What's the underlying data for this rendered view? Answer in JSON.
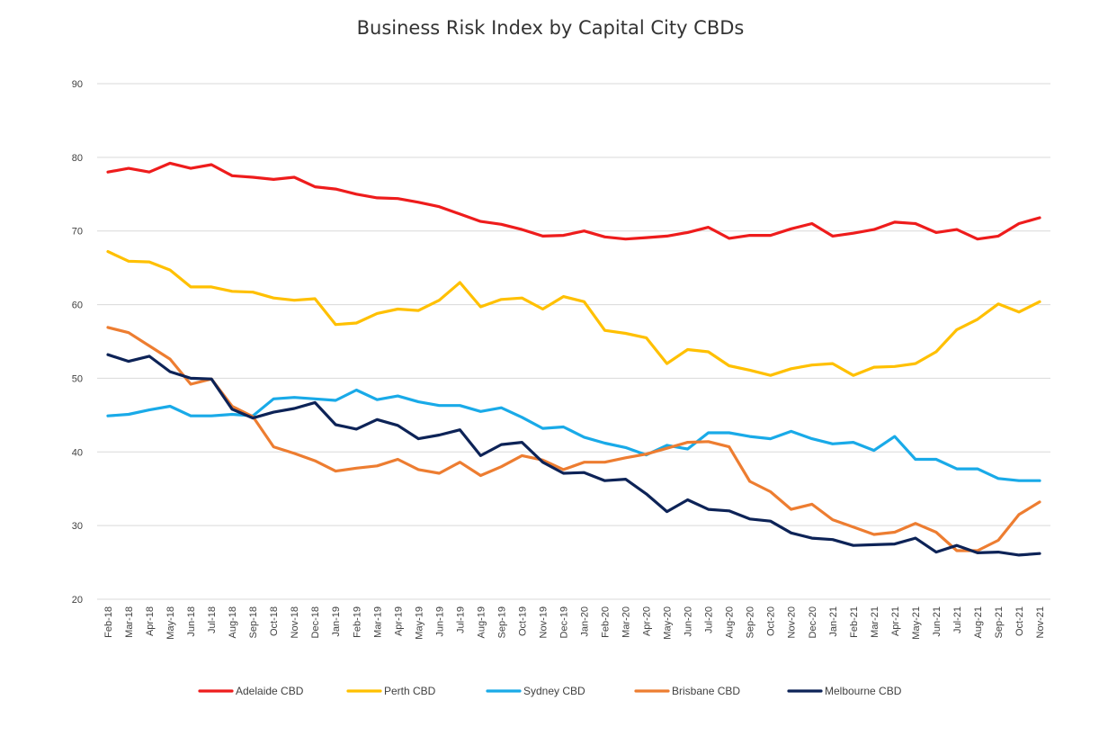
{
  "chart_data": {
    "type": "line",
    "title": "Business Risk Index by Capital City CBDs",
    "xlabel": "",
    "ylabel": "",
    "ylim": [
      20,
      90
    ],
    "yticks": [
      20,
      30,
      40,
      50,
      60,
      70,
      80,
      90
    ],
    "grid": true,
    "legend_position": "bottom",
    "categories": [
      "Feb-18",
      "Mar-18",
      "Apr-18",
      "May-18",
      "Jun-18",
      "Jul-18",
      "Aug-18",
      "Sep-18",
      "Oct-18",
      "Nov-18",
      "Dec-18",
      "Jan-19",
      "Feb-19",
      "Mar-19",
      "Apr-19",
      "May-19",
      "Jun-19",
      "Jul-19",
      "Aug-19",
      "Sep-19",
      "Oct-19",
      "Nov-19",
      "Dec-19",
      "Jan-20",
      "Feb-20",
      "Mar-20",
      "Apr-20",
      "May-20",
      "Jun-20",
      "Jul-20",
      "Aug-20",
      "Sep-20",
      "Oct-20",
      "Nov-20",
      "Dec-20",
      "Jan-21",
      "Feb-21",
      "Mar-21",
      "Apr-21",
      "May-21",
      "Jun-21",
      "Jul-21",
      "Aug-21",
      "Sep-21",
      "Oct-21",
      "Nov-21"
    ],
    "series": [
      {
        "name": "Adelaide CBD",
        "color": "#ee1c1c",
        "values": [
          78.0,
          78.5,
          78.0,
          79.2,
          78.5,
          79.0,
          77.5,
          77.3,
          77.0,
          77.3,
          76.0,
          75.7,
          75.0,
          74.5,
          74.4,
          73.9,
          73.3,
          72.3,
          71.3,
          70.9,
          70.2,
          69.3,
          69.4,
          70.0,
          69.2,
          68.9,
          69.1,
          69.3,
          69.8,
          70.5,
          69.0,
          69.4,
          69.4,
          70.3,
          71.0,
          69.3,
          69.7,
          70.2,
          71.2,
          71.0,
          69.8,
          70.2,
          68.9,
          69.3,
          71.0,
          71.8
        ]
      },
      {
        "name": "Perth CBD",
        "color": "#ffc000",
        "values": [
          67.2,
          65.9,
          65.8,
          64.7,
          62.4,
          62.4,
          61.8,
          61.7,
          60.9,
          60.6,
          60.8,
          57.3,
          57.5,
          58.8,
          59.4,
          59.2,
          60.6,
          63.0,
          59.7,
          60.7,
          60.9,
          59.4,
          61.1,
          60.4,
          56.5,
          56.1,
          55.5,
          52.0,
          53.9,
          53.6,
          51.7,
          51.1,
          50.4,
          51.3,
          51.8,
          52.0,
          50.4,
          51.5,
          51.6,
          52.0,
          53.6,
          56.6,
          58.0,
          60.1,
          59.0,
          60.4
        ]
      },
      {
        "name": "Sydney CBD",
        "color": "#19aae8",
        "values": [
          44.9,
          45.1,
          45.7,
          46.2,
          44.9,
          44.9,
          45.1,
          44.9,
          47.2,
          47.4,
          47.2,
          47.0,
          48.4,
          47.1,
          47.6,
          46.8,
          46.3,
          46.3,
          45.5,
          46.0,
          44.7,
          43.2,
          43.4,
          42.0,
          41.2,
          40.6,
          39.6,
          40.9,
          40.4,
          42.6,
          42.6,
          42.1,
          41.8,
          42.8,
          41.8,
          41.1,
          41.3,
          40.2,
          42.1,
          39.0,
          39.0,
          37.7,
          37.7,
          36.4,
          36.1,
          36.1
        ]
      },
      {
        "name": "Brisbane CBD",
        "color": "#ed7d31",
        "values": [
          56.9,
          56.2,
          54.4,
          52.6,
          49.2,
          49.9,
          46.2,
          44.8,
          40.7,
          39.8,
          38.8,
          37.4,
          37.8,
          38.1,
          39.0,
          37.6,
          37.1,
          38.6,
          36.8,
          38.0,
          39.5,
          38.9,
          37.6,
          38.6,
          38.6,
          39.2,
          39.7,
          40.5,
          41.3,
          41.4,
          40.7,
          36.0,
          34.6,
          32.2,
          32.9,
          30.8,
          29.8,
          28.8,
          29.1,
          30.3,
          29.1,
          26.6,
          26.6,
          28.0,
          31.5,
          33.2
        ]
      },
      {
        "name": "Melbourne CBD",
        "color": "#0d2357",
        "values": [
          53.2,
          52.3,
          53.0,
          50.9,
          50.0,
          49.9,
          45.8,
          44.6,
          45.4,
          45.9,
          46.7,
          43.7,
          43.1,
          44.4,
          43.6,
          41.8,
          42.3,
          43.0,
          39.5,
          41.0,
          41.3,
          38.6,
          37.1,
          37.2,
          36.1,
          36.3,
          34.3,
          31.9,
          33.5,
          32.2,
          32.0,
          30.9,
          30.6,
          29.0,
          28.3,
          28.1,
          27.3,
          27.4,
          27.5,
          28.3,
          26.4,
          27.3,
          26.3,
          26.4,
          26.0,
          26.2
        ]
      }
    ]
  }
}
